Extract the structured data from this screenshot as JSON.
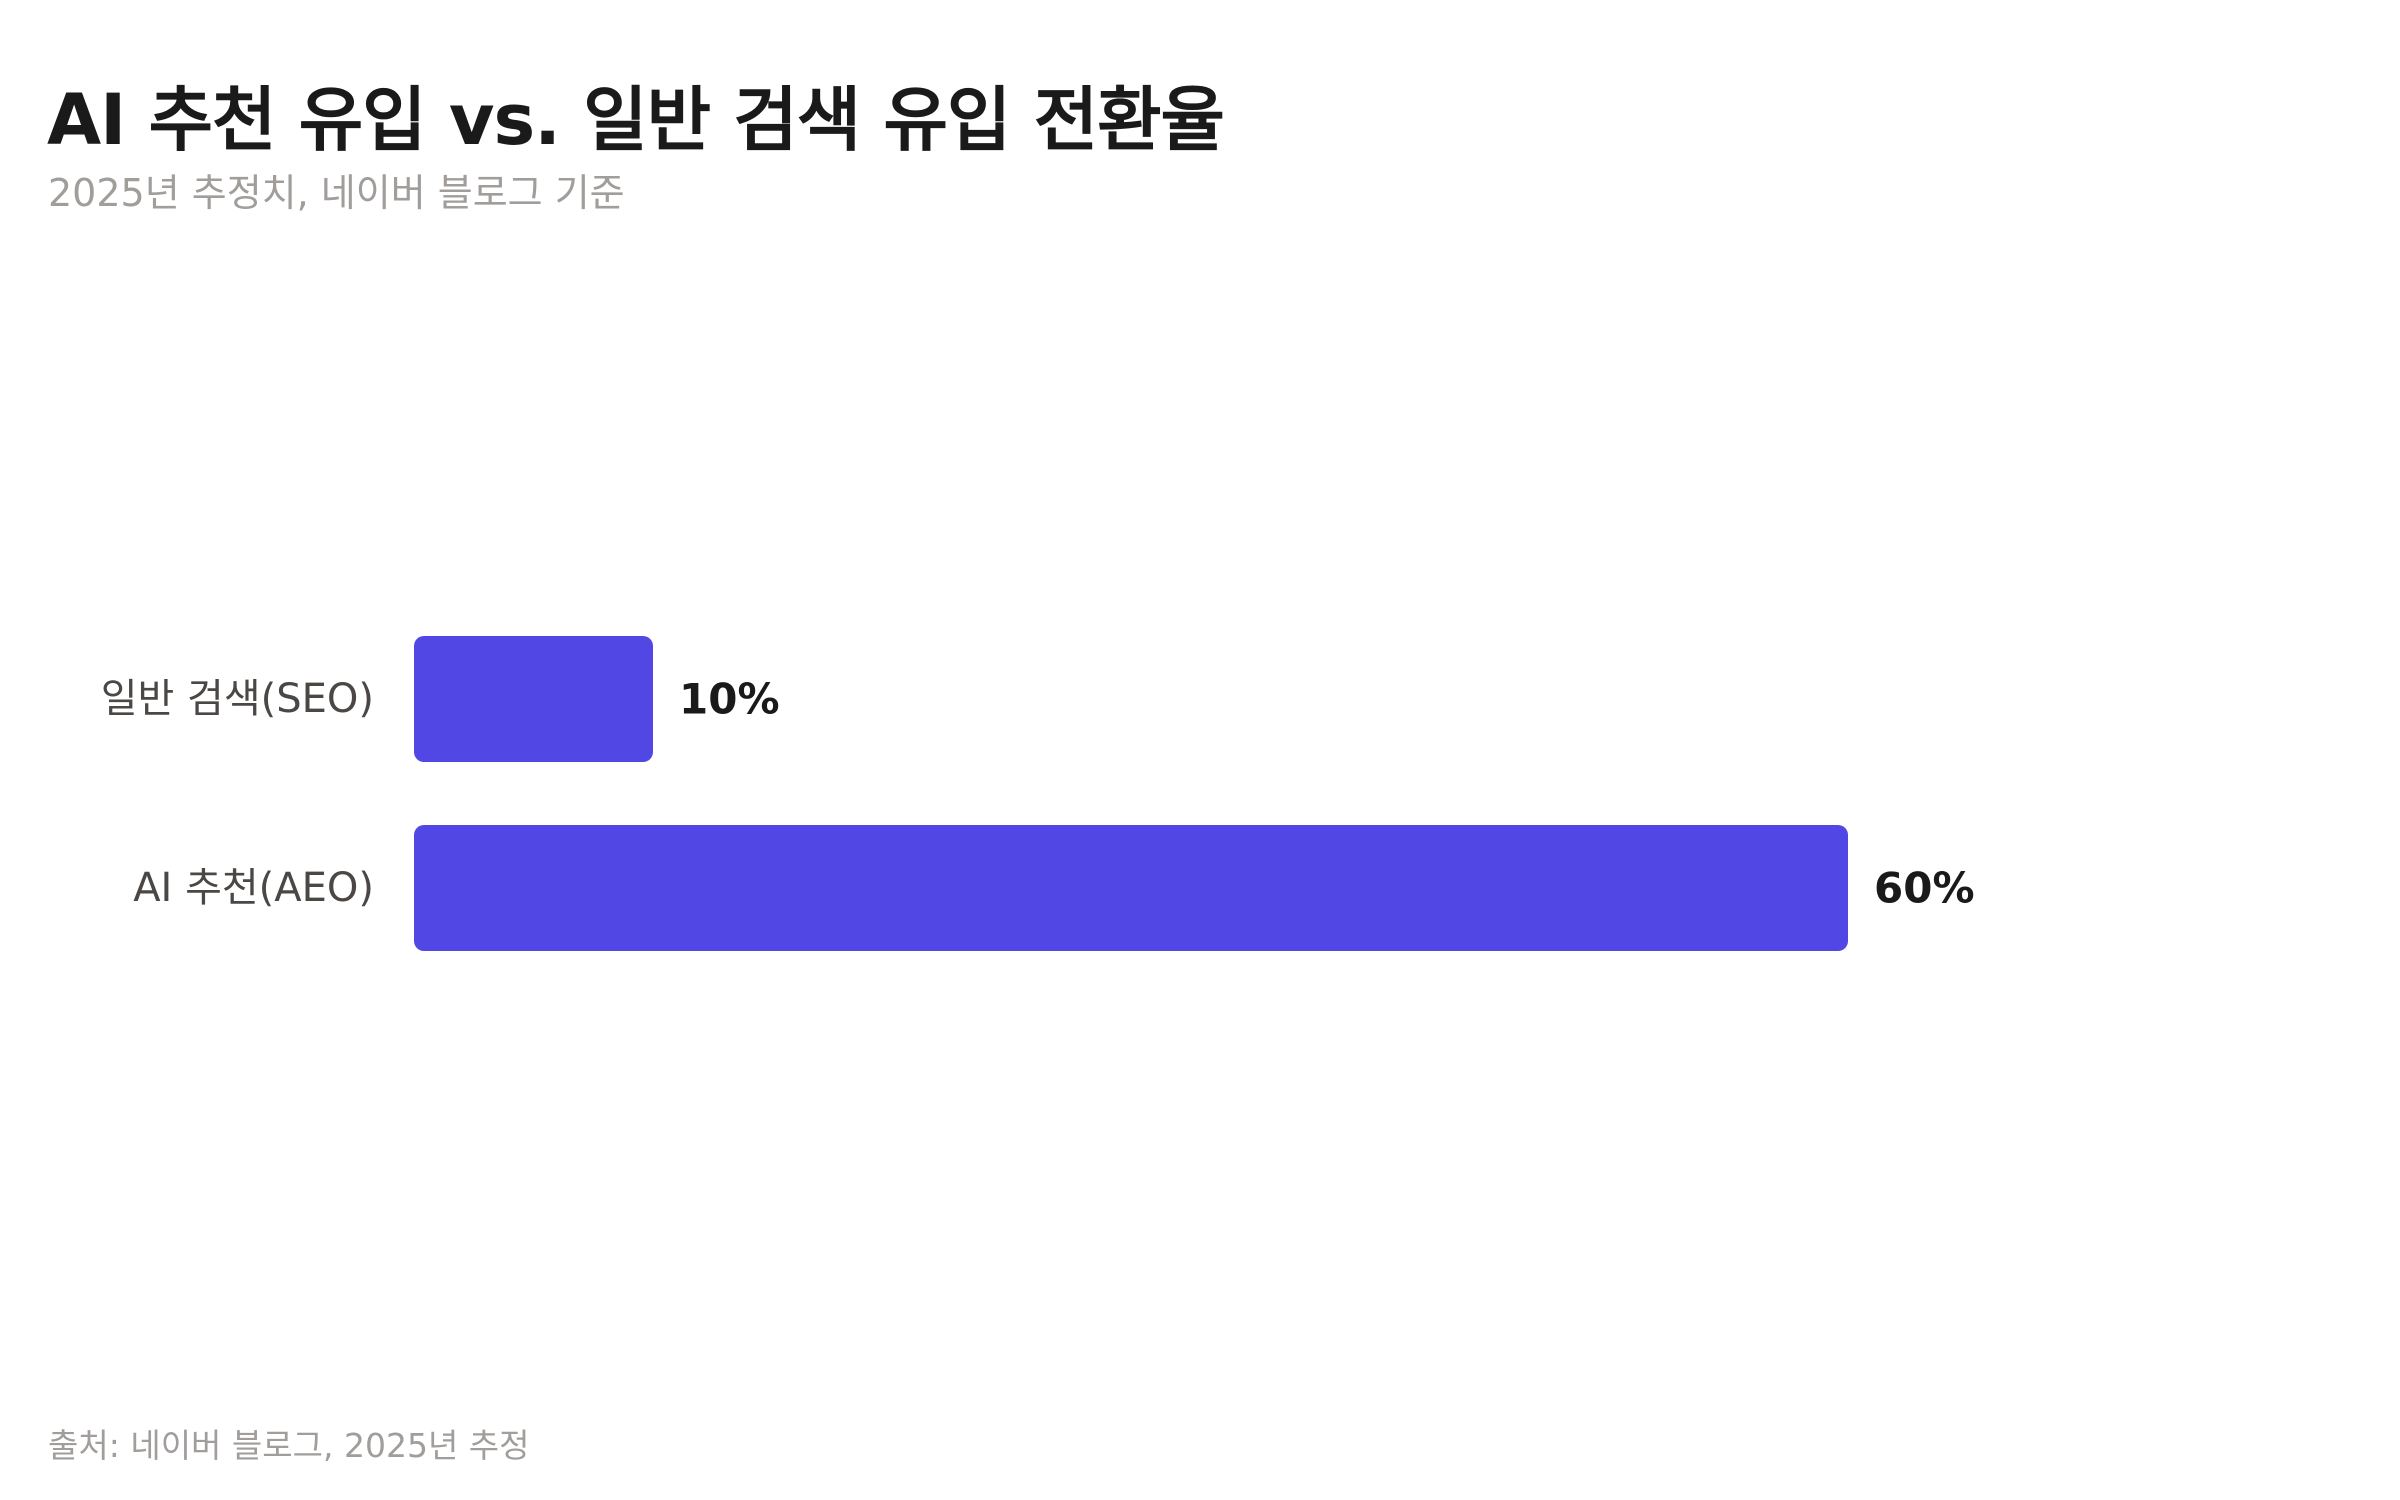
{
  "header": {
    "title": "AI 추천 유입 vs. 일반 검색 유입 전환율",
    "subtitle": "2025년 추정치, 네이버 블로그 기준"
  },
  "footer": {
    "source": "출처: 네이버 블로그, 2025년 추정"
  },
  "colors": {
    "bar": "#5047e5",
    "title": "#1a1a1a",
    "muted": "#a09d9a",
    "category_label": "#4a4744"
  },
  "chart_data": {
    "type": "bar",
    "orientation": "horizontal",
    "title": "AI 추천 유입 vs. 일반 검색 유입 전환율",
    "subtitle": "2025년 추정치, 네이버 블로그 기준",
    "categories": [
      "일반 검색(SEO)",
      "AI 추천(AEO)"
    ],
    "values": [
      10,
      60
    ],
    "value_labels": [
      "10%",
      "60%"
    ],
    "unit": "%",
    "xlim": [
      0,
      100
    ],
    "grid": false,
    "legend": "none"
  }
}
